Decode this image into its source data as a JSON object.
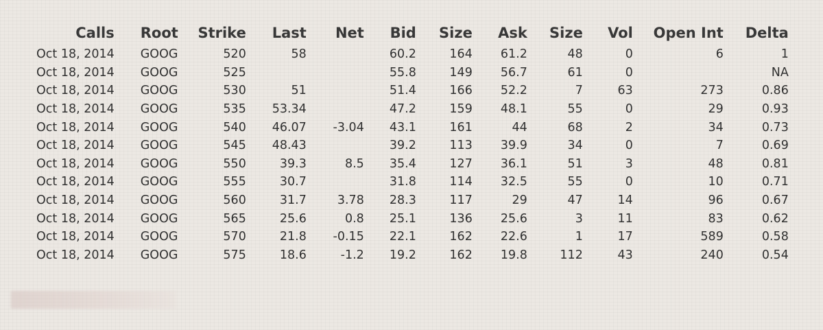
{
  "chart_data": {
    "type": "table",
    "columns": [
      "Calls",
      "Root",
      "Strike",
      "Last",
      "Net",
      "Bid",
      "Size",
      "Ask",
      "Size",
      "Vol",
      "Open Int",
      "Delta"
    ],
    "rows": [
      [
        "Oct 18, 2014",
        "GOOG",
        "520",
        "58",
        "",
        "60.2",
        "164",
        "61.2",
        "48",
        "0",
        "6",
        "1"
      ],
      [
        "Oct 18, 2014",
        "GOOG",
        "525",
        "",
        "",
        "55.8",
        "149",
        "56.7",
        "61",
        "0",
        "",
        "NA"
      ],
      [
        "Oct 18, 2014",
        "GOOG",
        "530",
        "51",
        "",
        "51.4",
        "166",
        "52.2",
        "7",
        "63",
        "273",
        "0.86"
      ],
      [
        "Oct 18, 2014",
        "GOOG",
        "535",
        "53.34",
        "",
        "47.2",
        "159",
        "48.1",
        "55",
        "0",
        "29",
        "0.93"
      ],
      [
        "Oct 18, 2014",
        "GOOG",
        "540",
        "46.07",
        "-3.04",
        "43.1",
        "161",
        "44",
        "68",
        "2",
        "34",
        "0.73"
      ],
      [
        "Oct 18, 2014",
        "GOOG",
        "545",
        "48.43",
        "",
        "39.2",
        "113",
        "39.9",
        "34",
        "0",
        "7",
        "0.69"
      ],
      [
        "Oct 18, 2014",
        "GOOG",
        "550",
        "39.3",
        "8.5",
        "35.4",
        "127",
        "36.1",
        "51",
        "3",
        "48",
        "0.81"
      ],
      [
        "Oct 18, 2014",
        "GOOG",
        "555",
        "30.7",
        "",
        "31.8",
        "114",
        "32.5",
        "55",
        "0",
        "10",
        "0.71"
      ],
      [
        "Oct 18, 2014",
        "GOOG",
        "560",
        "31.7",
        "3.78",
        "28.3",
        "117",
        "29",
        "47",
        "14",
        "96",
        "0.67"
      ],
      [
        "Oct 18, 2014",
        "GOOG",
        "565",
        "25.6",
        "0.8",
        "25.1",
        "136",
        "25.6",
        "3",
        "11",
        "83",
        "0.62"
      ],
      [
        "Oct 18, 2014",
        "GOOG",
        "570",
        "21.8",
        "-0.15",
        "22.1",
        "162",
        "22.6",
        "1",
        "17",
        "589",
        "0.58"
      ],
      [
        "Oct 18, 2014",
        "GOOG",
        "575",
        "18.6",
        "-1.2",
        "19.2",
        "162",
        "19.8",
        "112",
        "43",
        "240",
        "0.54"
      ]
    ]
  }
}
